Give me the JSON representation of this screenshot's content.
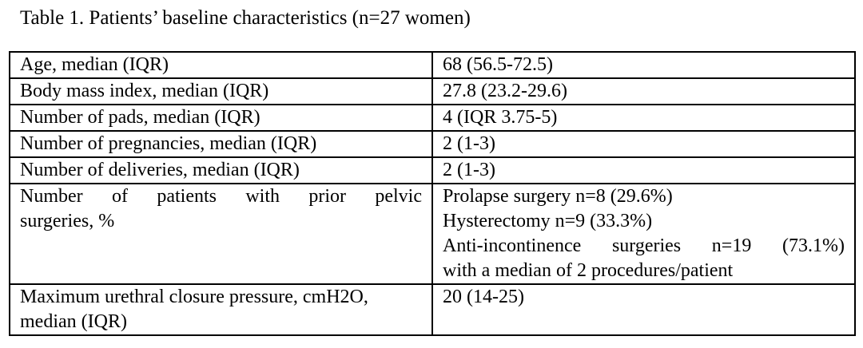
{
  "table_caption": "Table 1. Patients’ baseline characteristics (n=27 women)",
  "rows": [
    {
      "label": "Age, median (IQR)",
      "value": "68 (56.5-72.5)"
    },
    {
      "label": "Body mass index, median (IQR)",
      "value": "27.8 (23.2-29.6)"
    },
    {
      "label": "Number of pads, median (IQR)",
      "value": "4 (IQR 3.75-5)"
    },
    {
      "label": "Number of pregnancies, median (IQR)",
      "value": "2 (1-3)"
    },
    {
      "label": "Number of deliveries, median (IQR)",
      "value": "2 (1-3)"
    },
    {
      "label_line1": "Number of patients with prior pelvic",
      "label_line2": "surgeries, %",
      "values": [
        "Prolapse surgery n=8 (29.6%)",
        "Hysterectomy n=9 (33.3%)",
        "Anti-incontinence surgeries n=19 (73.1%)",
        "with a median of 2 procedures/patient"
      ]
    },
    {
      "label_line1": "Maximum urethral closure pressure, cmH2O,",
      "label_line2": "median (IQR)",
      "value": "20 (14-25)"
    }
  ]
}
